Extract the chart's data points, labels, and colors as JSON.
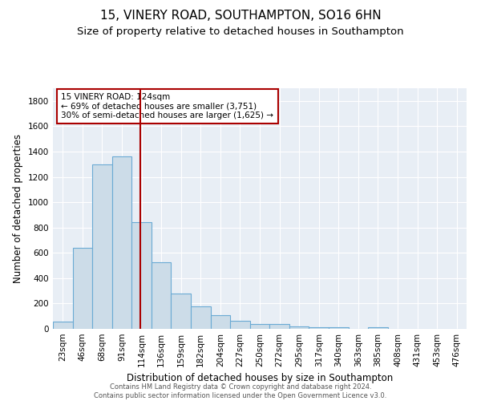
{
  "title1": "15, VINERY ROAD, SOUTHAMPTON, SO16 6HN",
  "title2": "Size of property relative to detached houses in Southampton",
  "xlabel": "Distribution of detached houses by size in Southampton",
  "ylabel": "Number of detached properties",
  "categories": [
    "23sqm",
    "46sqm",
    "68sqm",
    "91sqm",
    "114sqm",
    "136sqm",
    "159sqm",
    "182sqm",
    "204sqm",
    "227sqm",
    "250sqm",
    "272sqm",
    "295sqm",
    "317sqm",
    "340sqm",
    "363sqm",
    "385sqm",
    "408sqm",
    "431sqm",
    "453sqm",
    "476sqm"
  ],
  "values": [
    60,
    640,
    1300,
    1360,
    840,
    525,
    280,
    175,
    110,
    65,
    40,
    35,
    22,
    15,
    10,
    0,
    15,
    0,
    0,
    0,
    0
  ],
  "bar_color": "#ccdce8",
  "bar_edge_color": "#6aaad4",
  "vline_color": "#aa0000",
  "vline_pos": 4.45,
  "annotation_text": "15 VINERY ROAD: 124sqm\n← 69% of detached houses are smaller (3,751)\n30% of semi-detached houses are larger (1,625) →",
  "annotation_box_color": "white",
  "annotation_box_edge_color": "#aa0000",
  "ylim": [
    0,
    1900
  ],
  "yticks": [
    0,
    200,
    400,
    600,
    800,
    1000,
    1200,
    1400,
    1600,
    1800
  ],
  "bg_color": "#e8eef5",
  "grid_color": "#ffffff",
  "footer_text": "Contains HM Land Registry data © Crown copyright and database right 2024.\nContains public sector information licensed under the Open Government Licence v3.0.",
  "title1_fontsize": 11,
  "title2_fontsize": 9.5,
  "xlabel_fontsize": 8.5,
  "ylabel_fontsize": 8.5,
  "tick_fontsize": 7.5,
  "annot_fontsize": 7.5,
  "footer_fontsize": 6
}
